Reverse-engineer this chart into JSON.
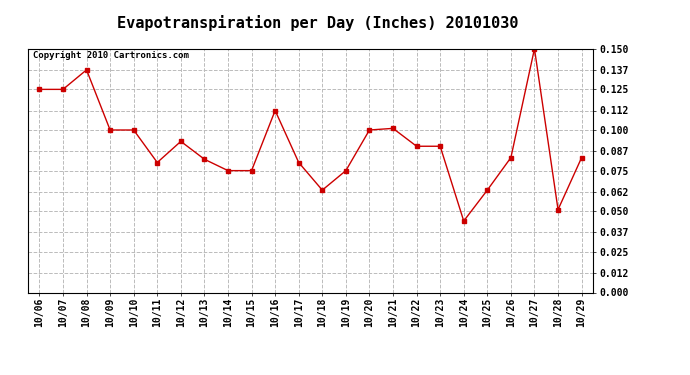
{
  "title": "Evapotranspiration per Day (Inches) 20101030",
  "copyright_text": "Copyright 2010 Cartronics.com",
  "x_labels": [
    "10/06",
    "10/07",
    "10/08",
    "10/09",
    "10/10",
    "10/11",
    "10/12",
    "10/13",
    "10/14",
    "10/15",
    "10/16",
    "10/17",
    "10/18",
    "10/19",
    "10/20",
    "10/21",
    "10/22",
    "10/23",
    "10/24",
    "10/25",
    "10/26",
    "10/27",
    "10/28",
    "10/29"
  ],
  "y_values": [
    0.125,
    0.125,
    0.137,
    0.1,
    0.1,
    0.08,
    0.093,
    0.082,
    0.075,
    0.075,
    0.112,
    0.08,
    0.063,
    0.075,
    0.1,
    0.101,
    0.09,
    0.09,
    0.044,
    0.063,
    0.083,
    0.15,
    0.051,
    0.083
  ],
  "line_color": "#cc0000",
  "marker": "s",
  "marker_size": 3,
  "y_min": 0.0,
  "y_max": 0.15,
  "y_ticks": [
    0.0,
    0.012,
    0.025,
    0.037,
    0.05,
    0.062,
    0.075,
    0.087,
    0.1,
    0.112,
    0.125,
    0.137,
    0.15
  ],
  "background_color": "#ffffff",
  "grid_color": "#bbbbbb",
  "title_fontsize": 11,
  "copyright_fontsize": 6.5,
  "tick_fontsize": 7,
  "fig_width": 6.9,
  "fig_height": 3.75,
  "fig_dpi": 100
}
